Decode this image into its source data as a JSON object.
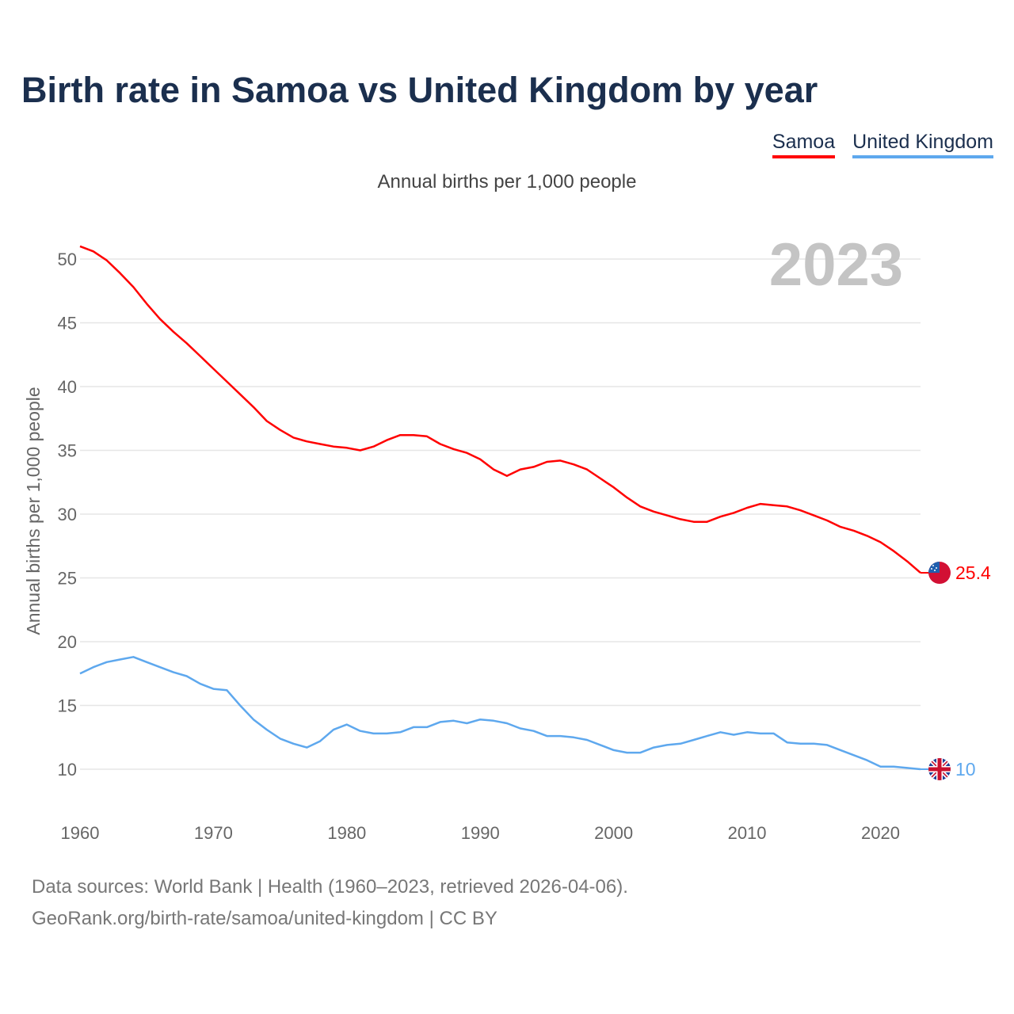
{
  "title": "Birth rate in Samoa vs United Kingdom by year",
  "legend": [
    {
      "label": "Samoa",
      "color": "#ff0000"
    },
    {
      "label": "United Kingdom",
      "color": "#5ea8ee"
    }
  ],
  "subtitle": "Annual births per 1,000 people",
  "year_badge": "2023",
  "footer": {
    "line1": "Data sources: World Bank | Health (1960–2023, retrieved 2026-04-06).",
    "line2": "GeoRank.org/birth-rate/samoa/united-kingdom | CC BY"
  },
  "chart_data": {
    "type": "line",
    "title": "Birth rate in Samoa vs United Kingdom by year",
    "xlabel": "",
    "ylabel": "Annual births per 1,000 people",
    "xlim": [
      1960,
      2023
    ],
    "ylim": [
      10,
      50
    ],
    "yticks": [
      10,
      15,
      20,
      25,
      30,
      35,
      40,
      45,
      50
    ],
    "xticks": [
      1960,
      1970,
      1980,
      1990,
      2000,
      2010,
      2020
    ],
    "grid": true,
    "legend_position": "top-right",
    "x_start": 1960,
    "series": [
      {
        "name": "Samoa",
        "color": "#ff0000",
        "end_label": "25.4",
        "values": [
          51.0,
          50.6,
          49.9,
          48.9,
          47.8,
          46.5,
          45.3,
          44.3,
          43.4,
          42.4,
          41.4,
          40.4,
          39.4,
          38.4,
          37.3,
          36.6,
          36.0,
          35.7,
          35.5,
          35.3,
          35.2,
          35.0,
          35.3,
          35.8,
          36.2,
          36.2,
          36.1,
          35.5,
          35.1,
          34.8,
          34.3,
          33.5,
          33.0,
          33.5,
          33.7,
          34.1,
          34.2,
          33.9,
          33.5,
          32.8,
          32.1,
          31.3,
          30.6,
          30.2,
          29.9,
          29.6,
          29.4,
          29.4,
          29.8,
          30.1,
          30.5,
          30.8,
          30.7,
          30.6,
          30.3,
          29.9,
          29.5,
          29.0,
          28.7,
          28.3,
          27.8,
          27.1,
          26.3,
          25.4
        ]
      },
      {
        "name": "United Kingdom",
        "color": "#5ea8ee",
        "end_label": "10",
        "values": [
          17.5,
          18.0,
          18.4,
          18.6,
          18.8,
          18.4,
          18.0,
          17.6,
          17.3,
          16.7,
          16.3,
          16.2,
          15.0,
          13.9,
          13.1,
          12.4,
          12.0,
          11.7,
          12.2,
          13.1,
          13.5,
          13.0,
          12.8,
          12.8,
          12.9,
          13.3,
          13.3,
          13.7,
          13.8,
          13.6,
          13.9,
          13.8,
          13.6,
          13.2,
          13.0,
          12.6,
          12.6,
          12.5,
          12.3,
          11.9,
          11.5,
          11.3,
          11.3,
          11.7,
          11.9,
          12.0,
          12.3,
          12.6,
          12.9,
          12.7,
          12.9,
          12.8,
          12.8,
          12.1,
          12.0,
          12.0,
          11.9,
          11.5,
          11.1,
          10.7,
          10.2,
          10.2,
          10.1,
          10.0
        ]
      }
    ]
  }
}
